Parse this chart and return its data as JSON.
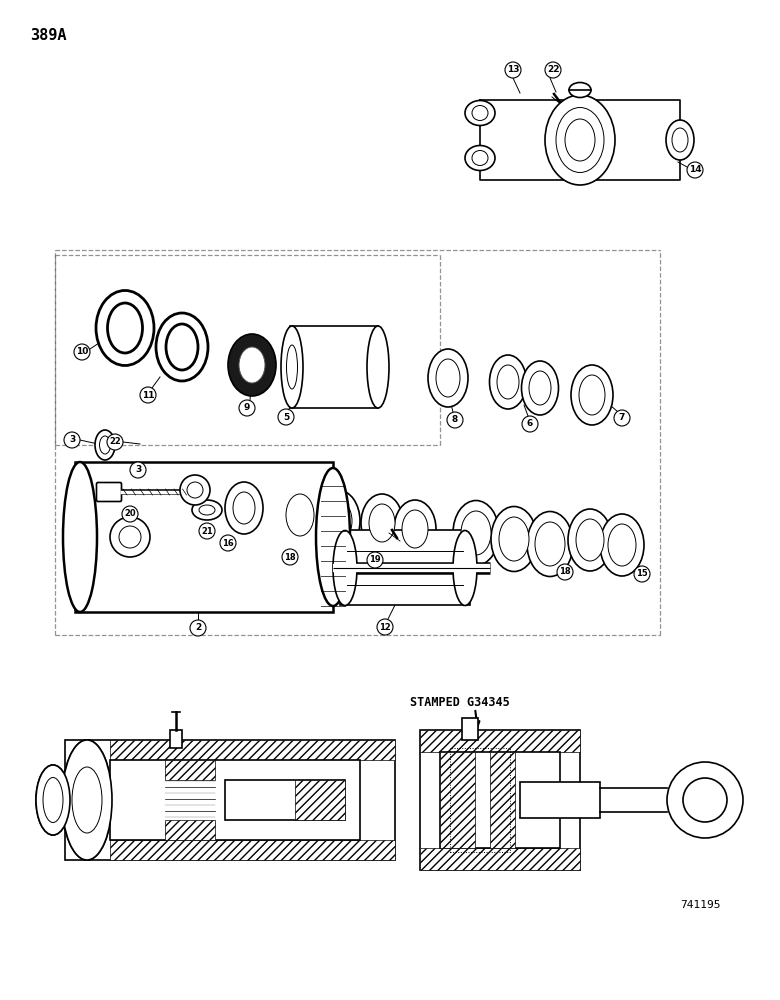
{
  "page_label": "389A",
  "doc_number": "741195",
  "stamped_text": "STAMPED G34345",
  "bg_color": "#ffffff",
  "ink_color": "#000000",
  "page_width": 7.8,
  "page_height": 10.0,
  "dpi": 100
}
